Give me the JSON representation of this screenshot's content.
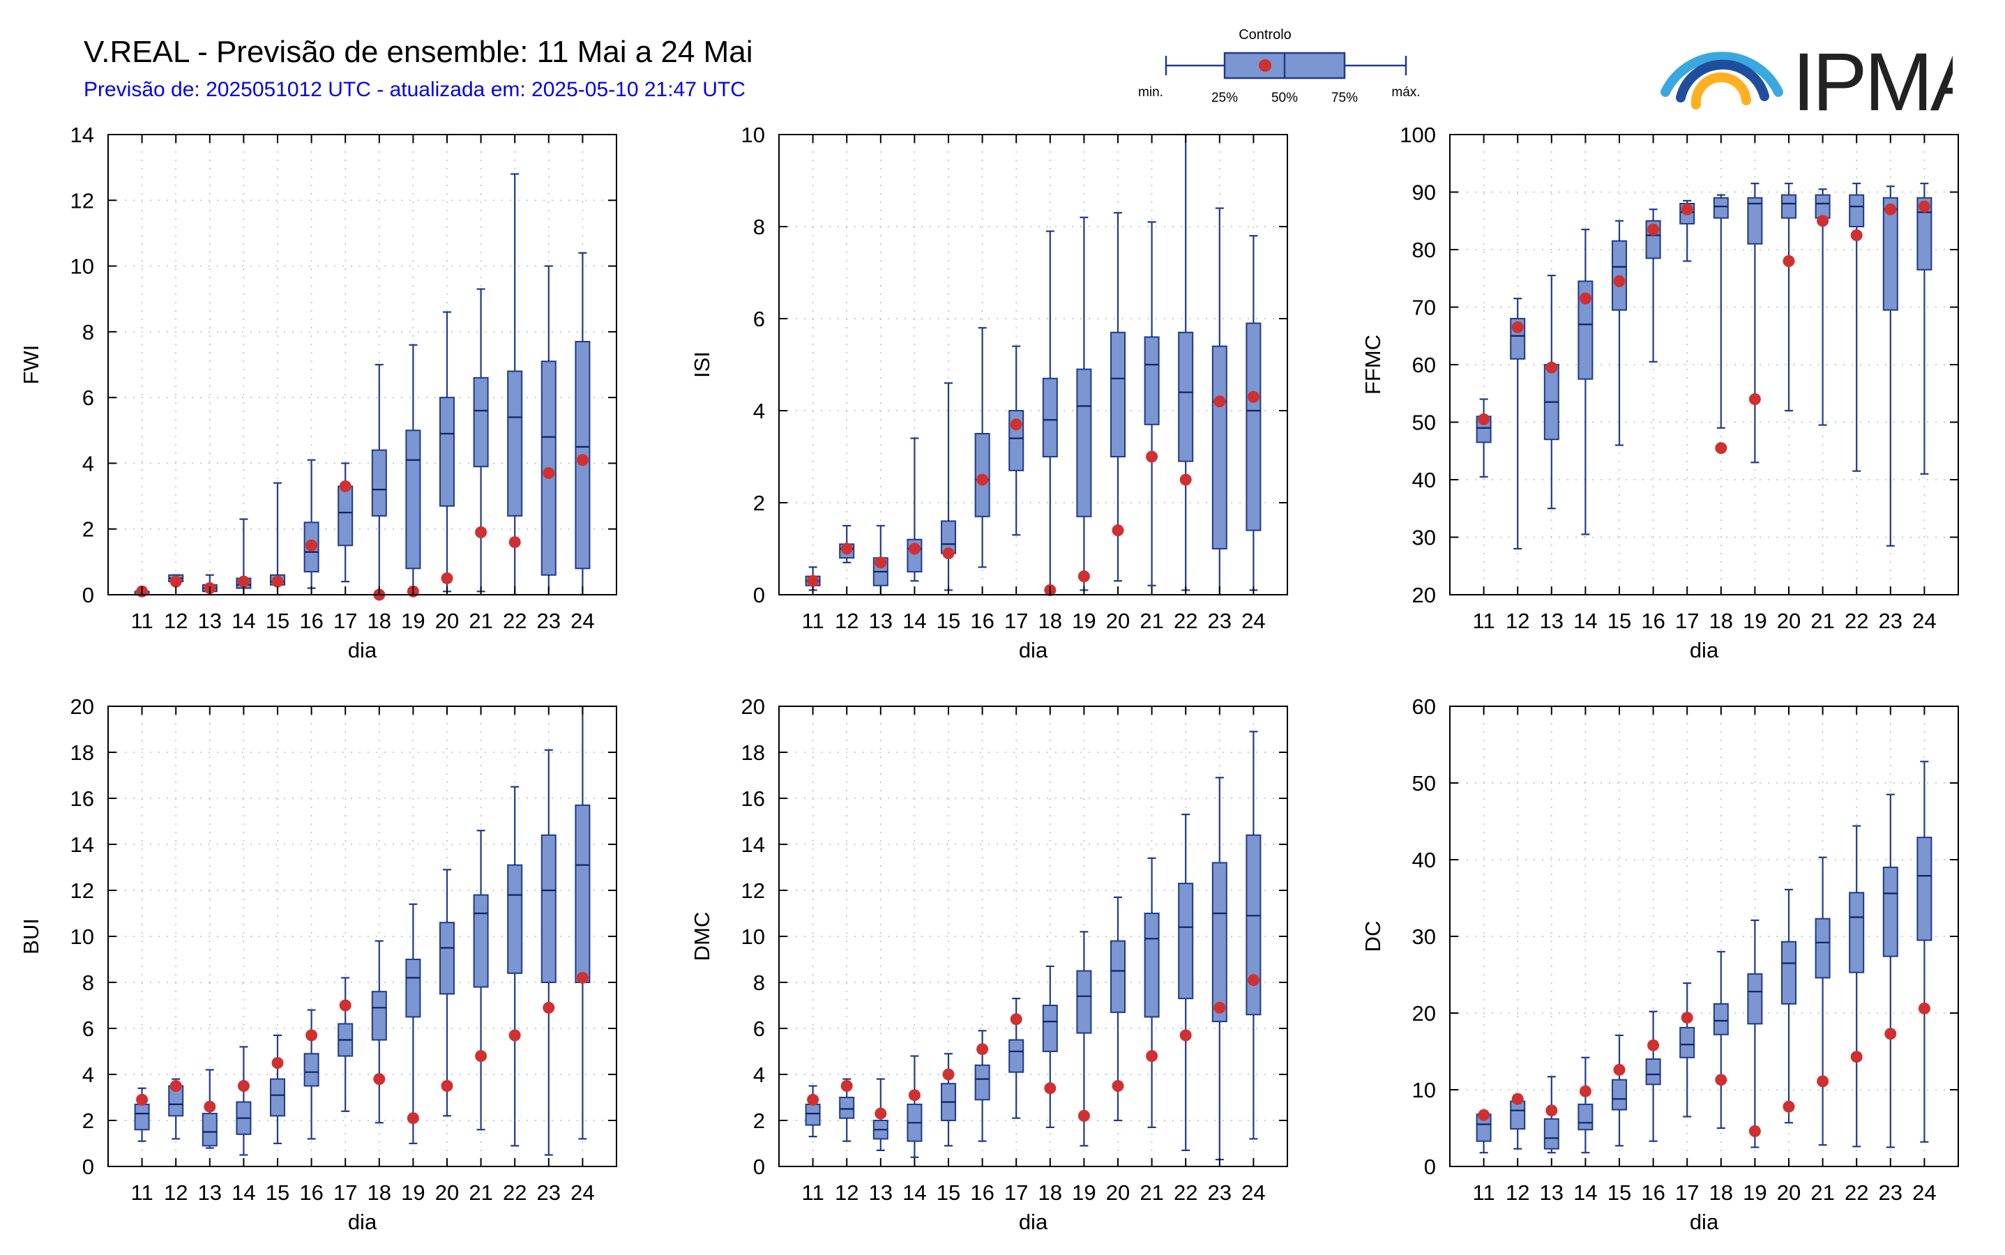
{
  "header": {
    "title": "V.REAL - Previsão de ensemble: 11 Mai a 24 Mai",
    "subtitle": "Previsão de: 2025051012 UTC - atualizada em: 2025-05-10 21:47 UTC"
  },
  "legend": {
    "title": "Controlo",
    "labels": {
      "min": "min.",
      "q1": "25%",
      "median": "50%",
      "q3": "75%",
      "max": "máx."
    }
  },
  "logo": {
    "text": "IPMA"
  },
  "colors": {
    "box": "#7b96d0",
    "box_stroke": "#1f3a8c",
    "control": "#d03030",
    "grid": "#bbbbbb"
  },
  "chart_data": [
    {
      "type": "boxplot",
      "title": "",
      "xlabel": "dia",
      "ylabel": "FWI",
      "ylim": [
        0,
        14
      ],
      "yticks": [
        0,
        2,
        4,
        6,
        8,
        10,
        12,
        14
      ],
      "grid": true,
      "categories": [
        "11",
        "12",
        "13",
        "14",
        "15",
        "16",
        "17",
        "18",
        "19",
        "20",
        "21",
        "22",
        "23",
        "24"
      ],
      "min": [
        0,
        0.3,
        0.2,
        0,
        0,
        0.2,
        0.4,
        0,
        0,
        0.1,
        0.1,
        0,
        0,
        0
      ],
      "q1": [
        0,
        0.4,
        0.1,
        0.2,
        0.3,
        0.7,
        1.5,
        2.4,
        0.8,
        2.7,
        3.9,
        2.4,
        0.6,
        0.8
      ],
      "median": [
        0,
        0.5,
        0.2,
        0.3,
        0.4,
        1.3,
        2.5,
        3.2,
        4.1,
        4.9,
        5.6,
        5.4,
        4.8,
        4.5
      ],
      "q3": [
        0.1,
        0.6,
        0.3,
        0.5,
        0.6,
        2.2,
        3.3,
        4.4,
        5.0,
        6.0,
        6.6,
        6.8,
        7.1,
        7.7
      ],
      "max": [
        0.1,
        0.6,
        0.6,
        2.3,
        3.4,
        4.1,
        4.0,
        7.0,
        7.6,
        8.6,
        9.3,
        12.8,
        10.0,
        10.4
      ],
      "control": [
        0.1,
        0.4,
        0.2,
        0.4,
        0.4,
        1.5,
        3.3,
        0,
        0.1,
        0.5,
        1.9,
        1.6,
        3.7,
        4.1
      ]
    },
    {
      "type": "boxplot",
      "title": "",
      "xlabel": "dia",
      "ylabel": "ISI",
      "ylim": [
        0,
        10
      ],
      "yticks": [
        0,
        2,
        4,
        6,
        8,
        10
      ],
      "grid": true,
      "categories": [
        "11",
        "12",
        "13",
        "14",
        "15",
        "16",
        "17",
        "18",
        "19",
        "20",
        "21",
        "22",
        "23",
        "24"
      ],
      "min": [
        0.1,
        0.7,
        0,
        0.3,
        0.1,
        0.6,
        1.3,
        0,
        0.1,
        0.3,
        0.2,
        0.1,
        0,
        0.1
      ],
      "q1": [
        0.2,
        0.8,
        0.2,
        0.5,
        0.9,
        1.7,
        2.7,
        3.0,
        1.7,
        3.0,
        3.7,
        2.9,
        1.0,
        1.4
      ],
      "median": [
        0.3,
        1.0,
        0.5,
        1.0,
        1.1,
        2.5,
        3.4,
        3.8,
        4.1,
        4.7,
        5.0,
        4.4,
        4.2,
        4.0
      ],
      "q3": [
        0.4,
        1.1,
        0.8,
        1.2,
        1.6,
        3.5,
        4.0,
        4.7,
        4.9,
        5.7,
        5.6,
        5.7,
        5.4,
        5.9
      ],
      "max": [
        0.6,
        1.5,
        1.5,
        3.4,
        4.6,
        5.8,
        5.4,
        7.9,
        8.2,
        8.3,
        8.1,
        10.0,
        8.4,
        7.8
      ],
      "control": [
        0.3,
        1.0,
        0.7,
        1.0,
        0.9,
        2.5,
        3.7,
        0.1,
        0.4,
        1.4,
        3.0,
        2.5,
        4.2,
        4.3
      ]
    },
    {
      "type": "boxplot",
      "title": "",
      "xlabel": "dia",
      "ylabel": "FFMC",
      "ylim": [
        20,
        100
      ],
      "yticks": [
        20,
        30,
        40,
        50,
        60,
        70,
        80,
        90,
        100
      ],
      "grid": true,
      "categories": [
        "11",
        "12",
        "13",
        "14",
        "15",
        "16",
        "17",
        "18",
        "19",
        "20",
        "21",
        "22",
        "23",
        "24"
      ],
      "min": [
        40.5,
        28,
        35,
        30.5,
        46,
        60.5,
        78,
        49,
        43,
        52,
        49.5,
        41.5,
        28.5,
        41
      ],
      "q1": [
        46.5,
        61,
        47,
        57.5,
        69.5,
        78.5,
        84.5,
        85.5,
        81,
        85.5,
        85.5,
        84,
        69.5,
        76.5
      ],
      "median": [
        49,
        65,
        53.5,
        67,
        77,
        82.5,
        86.5,
        87.5,
        88,
        88,
        88,
        87.5,
        87,
        86.5
      ],
      "q3": [
        51,
        68,
        60,
        74.5,
        81.5,
        85,
        88,
        89,
        89,
        89.5,
        89.5,
        89.5,
        89,
        89
      ],
      "max": [
        54,
        71.5,
        75.5,
        83.5,
        85,
        87,
        88.5,
        89.5,
        91.5,
        91.5,
        90.5,
        91.5,
        91,
        91.5
      ],
      "control": [
        50.5,
        66.5,
        59.5,
        71.5,
        74.5,
        83.5,
        87,
        45.5,
        54,
        78,
        85,
        82.5,
        87,
        87.5
      ]
    },
    {
      "type": "boxplot",
      "title": "",
      "xlabel": "dia",
      "ylabel": "BUI",
      "ylim": [
        0,
        20
      ],
      "yticks": [
        0,
        2,
        4,
        6,
        8,
        10,
        12,
        14,
        16,
        18,
        20
      ],
      "grid": true,
      "categories": [
        "11",
        "12",
        "13",
        "14",
        "15",
        "16",
        "17",
        "18",
        "19",
        "20",
        "21",
        "22",
        "23",
        "24"
      ],
      "min": [
        1.1,
        1.2,
        0.8,
        0.5,
        1.0,
        1.2,
        2.4,
        1.9,
        1.0,
        2.2,
        1.6,
        0.9,
        0.5,
        1.2
      ],
      "q1": [
        1.6,
        2.2,
        0.9,
        1.4,
        2.2,
        3.5,
        4.8,
        5.5,
        6.5,
        7.5,
        7.8,
        8.4,
        8.0,
        8.0
      ],
      "median": [
        2.3,
        2.7,
        1.5,
        2.1,
        3.1,
        4.1,
        5.5,
        6.9,
        8.2,
        9.5,
        11.0,
        11.8,
        12.0,
        13.1
      ],
      "q3": [
        2.7,
        3.5,
        2.3,
        2.8,
        3.8,
        4.9,
        6.2,
        7.6,
        9.0,
        10.6,
        11.8,
        13.1,
        14.4,
        15.7
      ],
      "max": [
        3.4,
        3.8,
        4.2,
        5.2,
        5.7,
        6.8,
        8.2,
        9.8,
        11.4,
        12.9,
        14.6,
        16.5,
        18.1,
        20.0
      ],
      "control": [
        2.9,
        3.5,
        2.6,
        3.5,
        4.5,
        5.7,
        7.0,
        3.8,
        2.1,
        3.5,
        4.8,
        5.7,
        6.9,
        8.2
      ]
    },
    {
      "type": "boxplot",
      "title": "",
      "xlabel": "dia",
      "ylabel": "DMC",
      "ylim": [
        0,
        20
      ],
      "yticks": [
        0,
        2,
        4,
        6,
        8,
        10,
        12,
        14,
        16,
        18,
        20
      ],
      "grid": true,
      "categories": [
        "11",
        "12",
        "13",
        "14",
        "15",
        "16",
        "17",
        "18",
        "19",
        "20",
        "21",
        "22",
        "23",
        "24"
      ],
      "min": [
        1.3,
        1.1,
        0.7,
        0.4,
        0.9,
        1.1,
        2.1,
        1.7,
        0.9,
        2.0,
        1.7,
        0.7,
        0.3,
        1.2
      ],
      "q1": [
        1.8,
        2.1,
        1.2,
        1.1,
        2.0,
        2.9,
        4.1,
        5.0,
        5.8,
        6.7,
        6.5,
        7.3,
        6.3,
        6.6
      ],
      "median": [
        2.3,
        2.5,
        1.6,
        1.9,
        2.8,
        3.8,
        5.0,
        6.3,
        7.4,
        8.5,
        9.9,
        10.4,
        11.0,
        10.9
      ],
      "q3": [
        2.7,
        3.0,
        2.0,
        2.7,
        3.6,
        4.4,
        5.5,
        7.0,
        8.5,
        9.8,
        11.0,
        12.3,
        13.2,
        14.4
      ],
      "max": [
        3.5,
        3.8,
        3.8,
        4.8,
        4.9,
        5.9,
        7.3,
        8.7,
        10.2,
        11.7,
        13.4,
        15.3,
        16.9,
        18.9
      ],
      "control": [
        2.9,
        3.5,
        2.3,
        3.1,
        4.0,
        5.1,
        6.4,
        3.4,
        2.2,
        3.5,
        4.8,
        5.7,
        6.9,
        8.1
      ]
    },
    {
      "type": "boxplot",
      "title": "",
      "xlabel": "dia",
      "ylabel": "DC",
      "ylim": [
        0,
        60
      ],
      "yticks": [
        0,
        10,
        20,
        30,
        40,
        50,
        60
      ],
      "grid": true,
      "categories": [
        "11",
        "12",
        "13",
        "14",
        "15",
        "16",
        "17",
        "18",
        "19",
        "20",
        "21",
        "22",
        "23",
        "24"
      ],
      "min": [
        1.8,
        2.3,
        1.8,
        1.8,
        2.7,
        3.3,
        6.5,
        5.0,
        2.5,
        5.7,
        2.8,
        2.6,
        2.5,
        3.2
      ],
      "q1": [
        3.3,
        4.9,
        2.3,
        4.8,
        7.4,
        10.7,
        14.2,
        17.2,
        18.6,
        21.2,
        24.6,
        25.3,
        27.4,
        29.5
      ],
      "median": [
        5.5,
        7.3,
        3.7,
        5.7,
        8.8,
        12.0,
        15.9,
        19.0,
        22.8,
        26.5,
        29.2,
        32.5,
        35.6,
        37.9
      ],
      "q3": [
        6.8,
        8.5,
        6.2,
        8.1,
        11.3,
        14.0,
        18.1,
        21.2,
        25.1,
        29.3,
        32.3,
        35.7,
        39.0,
        42.9
      ],
      "max": [
        7.0,
        9.3,
        11.7,
        14.2,
        17.1,
        20.2,
        23.9,
        28.0,
        32.1,
        36.1,
        40.3,
        44.4,
        48.5,
        52.8
      ],
      "control": [
        6.7,
        8.8,
        7.3,
        9.8,
        12.6,
        15.8,
        19.4,
        11.3,
        4.6,
        7.8,
        11.1,
        14.3,
        17.3,
        20.6
      ]
    }
  ]
}
